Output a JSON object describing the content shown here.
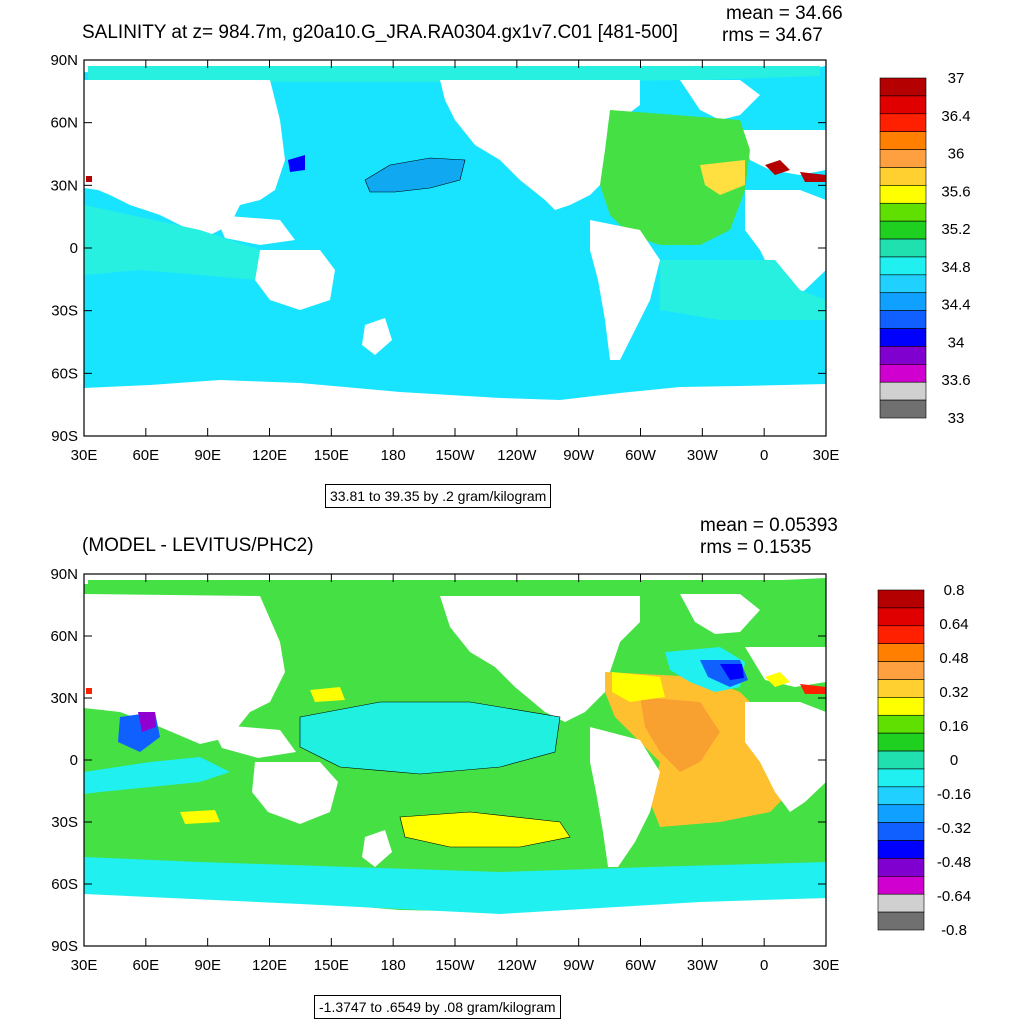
{
  "chart_data": [
    {
      "type": "heatmap",
      "title": "SALINITY at z= 984.7m, g20a10.G_JRA.RA0304.gx1v7.C01 [481-500]",
      "stat_mean": "mean = 34.66",
      "stat_rms": "rms = 34.67",
      "range_label": "33.81 to 39.35 by .2 gram/kilogram",
      "x_ticks": [
        "30E",
        "60E",
        "90E",
        "120E",
        "150E",
        "180",
        "150W",
        "120W",
        "90W",
        "60W",
        "30W",
        "0",
        "30E"
      ],
      "y_ticks": [
        "90N",
        "60N",
        "30N",
        "0",
        "30S",
        "60S",
        "90S"
      ],
      "colorbar_labels": [
        "37",
        "36.4",
        "36",
        "35.6",
        "35.2",
        "34.8",
        "34.4",
        "34",
        "33.6",
        "33"
      ],
      "colorbar_colors": [
        "#b40000",
        "#e00000",
        "#ff2000",
        "#ff7f00",
        "#ffa040",
        "#ffd030",
        "#ffff00",
        "#60e000",
        "#20d020",
        "#20e0b0",
        "#20f0f0",
        "#20d0ff",
        "#10a0ff",
        "#1060ff",
        "#0000ff",
        "#8000d0",
        "#d000d0",
        "#d0d0d0",
        "#707070"
      ],
      "colors": {
        "land": "#ffffff",
        "ocean_main": "#18e4ff",
        "ocean_light": "#28f0e0",
        "ocean_deep": "#10a8f0",
        "atlantic": "#44e044",
        "med": "#ffe040"
      }
    },
    {
      "type": "heatmap",
      "title": "(MODEL - LEVITUS/PHC2)",
      "stat_mean": "mean = 0.05393",
      "stat_rms": "rms = 0.1535",
      "range_label": "-1.3747 to .6549 by .08 gram/kilogram",
      "x_ticks": [
        "30E",
        "60E",
        "90E",
        "120E",
        "150E",
        "180",
        "150W",
        "120W",
        "90W",
        "60W",
        "30W",
        "0",
        "30E"
      ],
      "y_ticks": [
        "90N",
        "60N",
        "30N",
        "0",
        "30S",
        "60S",
        "90S"
      ],
      "colorbar_labels": [
        "0.8",
        "0.64",
        "0.48",
        "0.32",
        "0.16",
        "0",
        "-0.16",
        "-0.32",
        "-0.48",
        "-0.64",
        "-0.8"
      ],
      "colorbar_colors": [
        "#b40000",
        "#e00000",
        "#ff2000",
        "#ff7f00",
        "#ffa040",
        "#ffd030",
        "#ffff00",
        "#60e000",
        "#20d020",
        "#20e0b0",
        "#20f0f0",
        "#20d0ff",
        "#10a0ff",
        "#1060ff",
        "#0000ff",
        "#8000d0",
        "#d000d0",
        "#d0d0d0",
        "#707070"
      ],
      "colors": {
        "land": "#ffffff",
        "green": "#44e044",
        "cyan": "#20f0f0",
        "yellow": "#ffff00",
        "orange": "#ffc030",
        "deeporange": "#f8a030",
        "blue": "#1060ff",
        "purple": "#9000d0"
      }
    }
  ]
}
